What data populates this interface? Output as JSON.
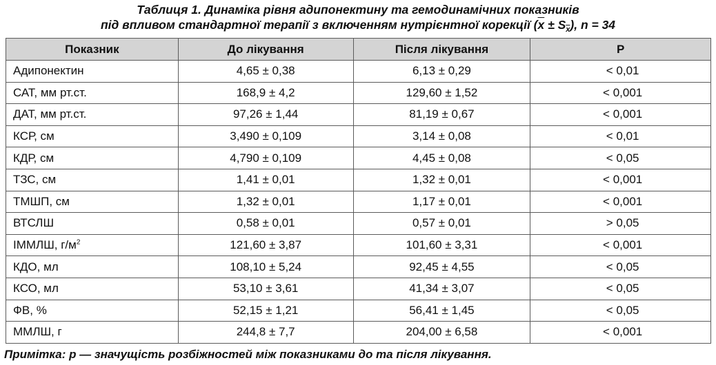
{
  "caption": {
    "line1": "Таблиця 1.  Динаміка рівня адипонектину та гемодинамічних показників",
    "line2_prefix": "під впливом стандартної терапії з включенням нутрієнтної корекції (",
    "x_bar": "x",
    "pm": " ± S",
    "sub_x": "x",
    "line2_suffix": "), n = 34"
  },
  "table": {
    "headers": [
      "Показник",
      "До лікування",
      "Після лікування",
      "P"
    ],
    "rows": [
      {
        "name": "Адипонектин",
        "before": "4,65 ± 0,38",
        "after": "6,13 ± 0,29",
        "p": "< 0,01"
      },
      {
        "name": "САТ, мм рт.ст.",
        "before": "168,9 ± 4,2",
        "after": "129,60 ± 1,52",
        "p": "< 0,001"
      },
      {
        "name": "ДАТ, мм рт.ст.",
        "before": "97,26 ± 1,44",
        "after": "81,19 ± 0,67",
        "p": "< 0,001"
      },
      {
        "name": "КСР, см",
        "before": "3,490 ± 0,109",
        "after": "3,14 ± 0,08",
        "p": "< 0,01"
      },
      {
        "name": "КДР, см",
        "before": "4,790 ± 0,109",
        "after": "4,45 ± 0,08",
        "p": "< 0,05"
      },
      {
        "name": "ТЗС, см",
        "before": "1,41 ± 0,01",
        "after": "1,32 ± 0,01",
        "p": "< 0,001"
      },
      {
        "name": "ТМШП, см",
        "before": "1,32 ± 0,01",
        "after": "1,17 ± 0,01",
        "p": "< 0,001"
      },
      {
        "name": "ВТСЛШ",
        "before": "0,58 ± 0,01",
        "after": "0,57 ± 0,01",
        "p": "> 0,05"
      },
      {
        "name": "ІММЛШ, г/м",
        "name_sup": "2",
        "before": "121,60 ± 3,87",
        "after": "101,60 ± 3,31",
        "p": "< 0,001"
      },
      {
        "name": "КДО, мл",
        "before": "108,10 ± 5,24",
        "after": "92,45 ± 4,55",
        "p": "< 0,05"
      },
      {
        "name": "КСО, мл",
        "before": "53,10 ± 3,61",
        "after": "41,34 ± 3,07",
        "p": "< 0,05"
      },
      {
        "name": "ФВ, %",
        "before": "52,15 ± 1,21",
        "after": "56,41 ± 1,45",
        "p": "< 0,05"
      },
      {
        "name": "ММЛШ, г",
        "before": "244,8 ± 7,7",
        "after": "204,00 ± 6,58",
        "p": "< 0,001"
      }
    ]
  },
  "note": "Примітка: р — значущість розбіжностей між показниками до та після лікування."
}
